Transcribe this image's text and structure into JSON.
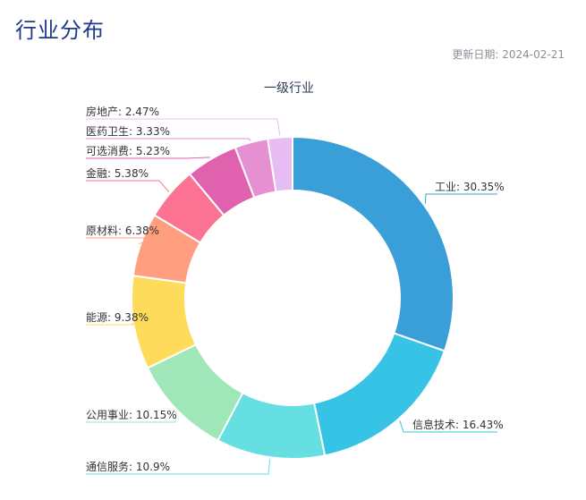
{
  "page": {
    "title": "行业分布",
    "update_label": "更新日期:",
    "update_date": "2024-02-21"
  },
  "chart_data": {
    "type": "pie",
    "variant": "donut",
    "title": "一级行业",
    "legend": "none",
    "slices": [
      {
        "label": "工业",
        "value": 30.35,
        "display": "工业: 30.35%",
        "color": "#3a9fd8"
      },
      {
        "label": "信息技术",
        "value": 16.43,
        "display": "信息技术: 16.43%",
        "color": "#36c3e6"
      },
      {
        "label": "通信服务",
        "value": 10.9,
        "display": "通信服务: 10.9%",
        "color": "#66dfe2"
      },
      {
        "label": "公用事业",
        "value": 10.15,
        "display": "公用事业: 10.15%",
        "color": "#9fe6b8"
      },
      {
        "label": "能源",
        "value": 9.38,
        "display": "能源: 9.38%",
        "color": "#ffdb5c"
      },
      {
        "label": "原材料",
        "value": 6.38,
        "display": "原材料: 6.38%",
        "color": "#ff9f7f"
      },
      {
        "label": "金融",
        "value": 5.38,
        "display": "金融: 5.38%",
        "color": "#fb7293"
      },
      {
        "label": "可选消费",
        "value": 5.23,
        "display": "可选消费: 5.23%",
        "color": "#e062ae"
      },
      {
        "label": "医药卫生",
        "value": 3.33,
        "display": "医药卫生: 3.33%",
        "color": "#e690d1"
      },
      {
        "label": "房地产",
        "value": 2.47,
        "display": "房地产: 2.47%",
        "color": "#e7bcf3"
      }
    ]
  }
}
